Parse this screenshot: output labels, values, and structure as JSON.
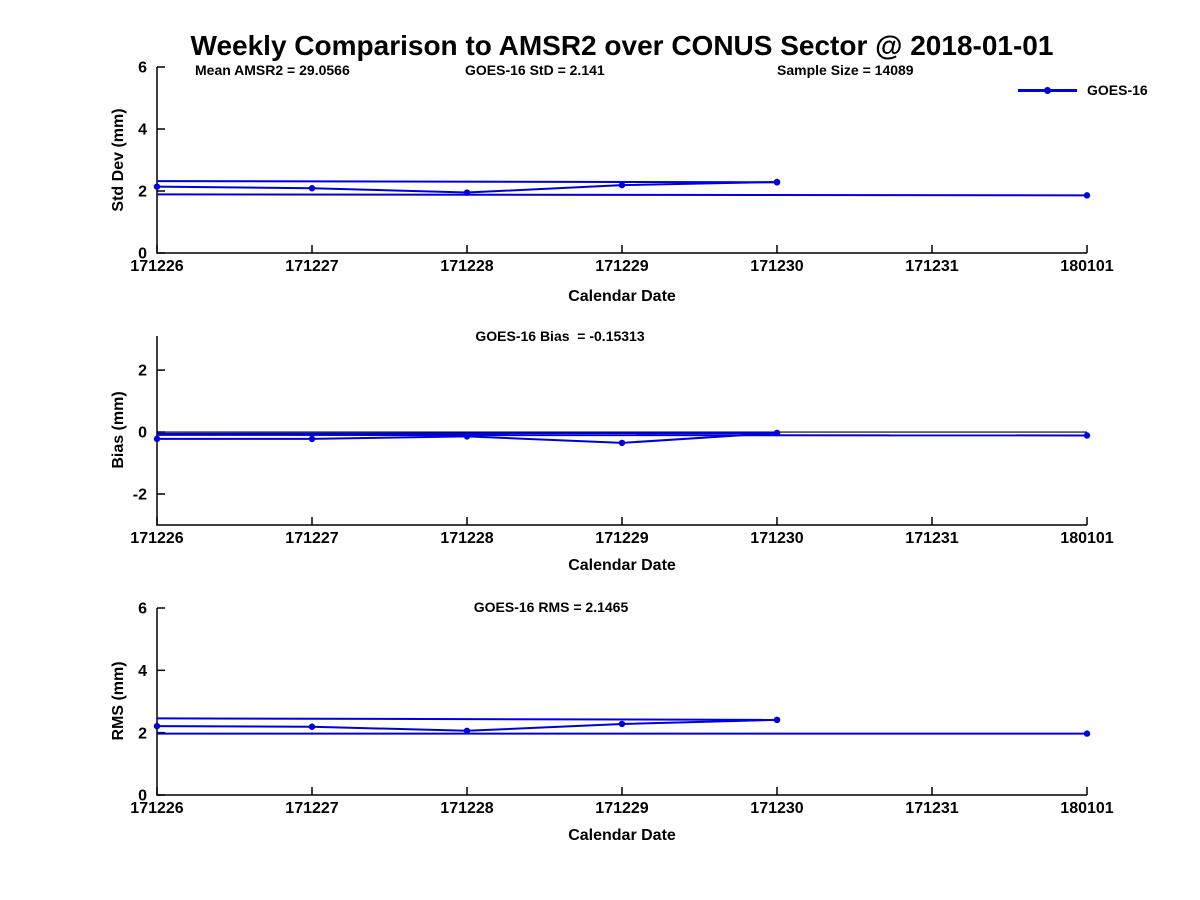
{
  "title": "Weekly Comparison to AMSR2 over CONUS Sector @ 2018-01-01",
  "annotations": {
    "mean_amsr2": "Mean AMSR2 = 29.0566",
    "goes16_std": "GOES-16 StD = 2.141",
    "sample_size": "Sample Size = 14089"
  },
  "legend": {
    "label": "GOES-16",
    "position": "top-right"
  },
  "colors": {
    "series": "#0000dd",
    "axis": "#000000",
    "background": "#ffffff"
  },
  "chart_data": {
    "type": "line",
    "x_categories": [
      "171226",
      "171227",
      "171228",
      "171229",
      "171230",
      "171231",
      "180101"
    ],
    "xlabel": "Calendar Date",
    "grid": false,
    "panels": [
      {
        "id": "std-dev",
        "ylabel": "Std Dev (mm)",
        "title": "",
        "ylim": [
          0,
          6
        ],
        "yticks": [
          0,
          2,
          4,
          6
        ],
        "zero_line": false,
        "series": [
          {
            "name": "goes16-daily",
            "x": [
              "171226",
              "171227",
              "171228",
              "171229",
              "171230"
            ],
            "y": [
              2.14,
              2.09,
              1.95,
              2.19,
              2.29
            ],
            "markers": "all"
          },
          {
            "name": "weekly-upper",
            "x": [
              "171226",
              "171230"
            ],
            "y": [
              2.32,
              2.28
            ],
            "markers": "end"
          },
          {
            "name": "weekly-lower",
            "x": [
              "171226",
              "180101"
            ],
            "y": [
              1.89,
              1.86
            ],
            "markers": "end"
          }
        ]
      },
      {
        "id": "bias",
        "ylabel": "Bias (mm)",
        "title": "GOES-16 Bias  = -0.15313",
        "ylim": [
          -3,
          3.1
        ],
        "yticks": [
          -2,
          0,
          2
        ],
        "zero_line": true,
        "series": [
          {
            "name": "goes16-daily",
            "x": [
              "171226",
              "171227",
              "171228",
              "171229",
              "171230"
            ],
            "y": [
              -0.22,
              -0.22,
              -0.14,
              -0.35,
              -0.03
            ],
            "markers": "all"
          },
          {
            "name": "weekly-upper",
            "x": [
              "171226",
              "171230"
            ],
            "y": [
              -0.06,
              -0.03
            ],
            "markers": "end"
          },
          {
            "name": "weekly-lower",
            "x": [
              "171226",
              "180101"
            ],
            "y": [
              -0.09,
              -0.11
            ],
            "markers": "end"
          }
        ]
      },
      {
        "id": "rms",
        "ylabel": "RMS (mm)",
        "title": "GOES-16 RMS = 2.1465",
        "ylim": [
          0,
          6
        ],
        "yticks": [
          0,
          2,
          4,
          6
        ],
        "zero_line": false,
        "series": [
          {
            "name": "goes16-daily",
            "x": [
              "171226",
              "171227",
              "171228",
              "171229",
              "171230"
            ],
            "y": [
              2.21,
              2.19,
              2.06,
              2.28,
              2.41
            ],
            "markers": "all"
          },
          {
            "name": "weekly-upper",
            "x": [
              "171226",
              "171230"
            ],
            "y": [
              2.46,
              2.41
            ],
            "markers": "end"
          },
          {
            "name": "weekly-lower",
            "x": [
              "171226",
              "180101"
            ],
            "y": [
              1.97,
              1.97
            ],
            "markers": "end"
          }
        ]
      }
    ]
  }
}
